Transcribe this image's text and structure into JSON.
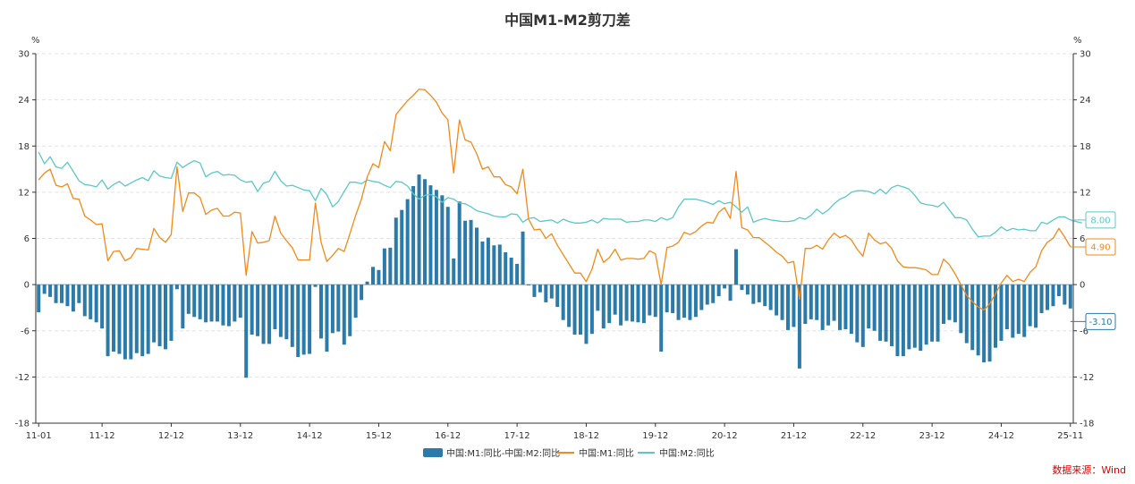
{
  "chart_data": {
    "type": "bar+line",
    "title": "中国M1-M2剪刀差",
    "left_unit": "%",
    "right_unit": "%",
    "ylim": [
      -18,
      30
    ],
    "yticks": [
      -18,
      -12,
      -6,
      0,
      6,
      12,
      18,
      24,
      30
    ],
    "x_tick_labels": [
      "11-01",
      "11-12",
      "12-12",
      "13-12",
      "14-12",
      "15-12",
      "16-12",
      "17-12",
      "18-12",
      "19-12",
      "20-12",
      "21-12",
      "22-12",
      "23-12",
      "24-12",
      "25-11"
    ],
    "x_start": "2011-01",
    "grid": "horizontal-dashed",
    "legend_position": "bottom-center",
    "series": [
      {
        "name": "中国:M1:同比-中国:M2:同比",
        "type": "bar",
        "color": "#2a7aaa",
        "end_label": "-3.10"
      },
      {
        "name": "中国:M1:同比",
        "type": "line",
        "color": "#f28a1a",
        "end_label": "4.90"
      },
      {
        "name": "中国:M2:同比",
        "type": "line",
        "color": "#5bc8c8",
        "end_label": "8.00"
      }
    ],
    "m1_yoy": [
      13.6,
      14.5,
      15.0,
      12.9,
      12.7,
      13.1,
      11.2,
      11.1,
      8.9,
      8.4,
      7.8,
      7.9,
      3.1,
      4.3,
      4.4,
      3.1,
      3.5,
      4.7,
      4.6,
      4.5,
      7.3,
      6.1,
      5.5,
      6.5,
      15.3,
      9.5,
      11.9,
      11.9,
      11.3,
      9.1,
      9.7,
      9.9,
      8.9,
      8.9,
      9.4,
      9.3,
      1.2,
      6.9,
      5.4,
      5.5,
      5.7,
      8.9,
      6.7,
      5.7,
      4.8,
      3.2,
      3.2,
      3.2,
      10.6,
      5.5,
      3.0,
      3.8,
      4.7,
      4.3,
      6.6,
      9.0,
      11.1,
      14.0,
      15.7,
      15.2,
      18.6,
      17.4,
      22.1,
      23.0,
      23.9,
      24.6,
      25.4,
      25.3,
      24.6,
      23.7,
      22.3,
      21.4,
      14.5,
      21.4,
      18.8,
      18.5,
      17.0,
      15.0,
      15.3,
      14.0,
      14.0,
      13.0,
      12.7,
      11.8,
      15.0,
      8.5,
      7.1,
      7.2,
      6.0,
      6.6,
      5.1,
      3.9,
      2.7,
      1.5,
      1.5,
      0.4,
      2.0,
      4.6,
      2.9,
      3.5,
      4.6,
      3.2,
      3.4,
      3.4,
      3.3,
      3.4,
      4.4,
      4.0,
      0.0,
      4.8,
      5.0,
      5.5,
      6.8,
      6.5,
      6.9,
      7.6,
      8.1,
      8.0,
      9.4,
      10.0,
      8.6,
      14.7,
      7.4,
      7.1,
      6.1,
      6.1,
      5.5,
      4.9,
      4.2,
      3.7,
      2.8,
      3.0,
      -1.9,
      4.7,
      4.7,
      5.1,
      4.6,
      5.8,
      6.7,
      6.1,
      6.4,
      5.8,
      4.6,
      3.7,
      6.7,
      5.8,
      5.3,
      5.5,
      4.7,
      3.1,
      2.3,
      2.2,
      2.2,
      2.1,
      1.9,
      1.3,
      1.3,
      3.3,
      2.6,
      1.4,
      0.0,
      -1.4,
      -2.2,
      -2.9,
      -3.3,
      -2.5,
      -1.2,
      0.2,
      1.2,
      0.4,
      0.7,
      0.4,
      1.6,
      2.3,
      4.4,
      5.5,
      6.0,
      7.3,
      6.2,
      4.9
    ],
    "m2_yoy": [
      17.2,
      15.7,
      16.6,
      15.3,
      15.1,
      15.9,
      14.7,
      13.5,
      13.0,
      12.9,
      12.7,
      13.6,
      12.4,
      13.0,
      13.4,
      12.8,
      13.2,
      13.6,
      13.9,
      13.5,
      14.8,
      14.1,
      13.9,
      13.8,
      15.9,
      15.2,
      15.7,
      16.1,
      15.8,
      14.0,
      14.5,
      14.7,
      14.2,
      14.3,
      14.2,
      13.6,
      13.3,
      13.4,
      12.1,
      13.2,
      13.4,
      14.7,
      13.5,
      12.8,
      12.9,
      12.6,
      12.3,
      12.2,
      10.9,
      12.5,
      11.7,
      10.1,
      10.8,
      12.1,
      13.3,
      13.3,
      13.1,
      13.6,
      13.4,
      13.3,
      12.9,
      12.6,
      13.4,
      13.3,
      12.8,
      11.8,
      11.1,
      11.6,
      11.7,
      11.4,
      10.7,
      11.3,
      11.1,
      10.6,
      10.5,
      10.1,
      9.6,
      9.4,
      9.2,
      8.9,
      8.8,
      8.8,
      9.2,
      9.1,
      8.1,
      8.6,
      8.7,
      8.2,
      8.3,
      8.4,
      8.0,
      8.5,
      8.2,
      8.0,
      8.0,
      8.1,
      8.4,
      8.0,
      8.6,
      8.5,
      8.5,
      8.5,
      8.1,
      8.2,
      8.2,
      8.4,
      8.4,
      8.2,
      8.7,
      8.4,
      8.7,
      10.1,
      11.1,
      11.1,
      11.1,
      10.9,
      10.7,
      10.4,
      10.9,
      10.5,
      10.7,
      10.1,
      9.4,
      10.1,
      8.1,
      8.4,
      8.6,
      8.4,
      8.3,
      8.2,
      8.2,
      8.3,
      8.7,
      8.5,
      9.0,
      9.8,
      9.2,
      9.7,
      10.5,
      11.1,
      11.4,
      12.0,
      12.2,
      12.2,
      12.1,
      11.8,
      12.4,
      11.8,
      12.6,
      12.9,
      12.7,
      12.4,
      11.6,
      10.6,
      10.4,
      10.3,
      10.1,
      10.7,
      9.7,
      8.7,
      8.7,
      8.4,
      7.2,
      6.2,
      6.3,
      6.3,
      6.8,
      7.5,
      7.0,
      7.3,
      7.1,
      7.2,
      7.0,
      7.0,
      8.1,
      7.9,
      8.4,
      8.8,
      8.8,
      8.4,
      8.2,
      8.0
    ],
    "scissors": [
      -3.6,
      -1.2,
      -1.6,
      -2.4,
      -2.4,
      -2.8,
      -3.5,
      -2.4,
      -4.1,
      -4.5,
      -4.9,
      -5.7,
      -9.3,
      -8.7,
      -9.0,
      -9.7,
      -9.7,
      -8.9,
      -9.3,
      -9.0,
      -7.5,
      -8.0,
      -8.4,
      -7.3,
      -0.6,
      -5.7,
      -3.8,
      -4.2,
      -4.5,
      -4.9,
      -4.8,
      -4.8,
      -5.3,
      -5.4,
      -4.8,
      -4.3,
      -12.1,
      -6.5,
      -6.7,
      -7.7,
      -7.7,
      -5.8,
      -6.8,
      -7.1,
      -8.1,
      -9.4,
      -9.1,
      -9.0,
      -0.3,
      -7.0,
      -8.7,
      -6.3,
      -6.1,
      -7.8,
      -6.7,
      -4.3,
      -2.0,
      0.4,
      2.3,
      1.9,
      4.7,
      4.8,
      8.7,
      9.7,
      11.1,
      12.8,
      14.3,
      13.7,
      12.9,
      12.3,
      11.6,
      10.1,
      3.4,
      10.8,
      8.3,
      8.4,
      7.4,
      5.6,
      6.1,
      5.1,
      5.2,
      4.2,
      3.5,
      2.7,
      6.9,
      -0.1,
      -1.6,
      -1.0,
      -2.3,
      -1.8,
      -2.9,
      -4.6,
      -5.5,
      -6.5,
      -6.5,
      -7.7,
      -6.4,
      -3.4,
      -5.7,
      -5.0,
      -3.9,
      -5.3,
      -4.7,
      -4.8,
      -4.9,
      -5.0,
      -4.0,
      -4.2,
      -8.7,
      -3.6,
      -3.7,
      -4.6,
      -4.3,
      -4.6,
      -4.2,
      -3.3,
      -2.6,
      -2.4,
      -1.5,
      -0.5,
      -2.1,
      4.6,
      -0.7,
      -1.3,
      -2.5,
      -2.3,
      -2.8,
      -3.3,
      -4.0,
      -4.6,
      -5.9,
      -5.5,
      -10.9,
      -5.1,
      -4.5,
      -4.6,
      -5.9,
      -5.3,
      -4.7,
      -5.9,
      -5.8,
      -6.4,
      -7.5,
      -8.1,
      -5.7,
      -6.0,
      -7.3,
      -7.4,
      -8.0,
      -9.3,
      -9.3,
      -8.4,
      -8.2,
      -8.6,
      -7.8,
      -7.4,
      -7.4,
      -5.1,
      -4.6,
      -4.9,
      -6.3,
      -7.6,
      -8.5,
      -9.2,
      -10.1,
      -10.0,
      -8.2,
      -7.3,
      -5.8,
      -6.9,
      -6.4,
      -6.8,
      -5.4,
      -5.6,
      -3.7,
      -3.3,
      -2.8,
      -1.5,
      -2.6,
      -3.1
    ]
  },
  "legend": {
    "bar_label": "中国:M1:同比-中国:M2:同比",
    "m1_label": "中国:M1:同比",
    "m2_label": "中国:M2:同比"
  },
  "end_labels": {
    "m2": "8.00",
    "m1": "4.90",
    "scissors": "-3.10"
  },
  "source_note": "数据来源：Wind"
}
